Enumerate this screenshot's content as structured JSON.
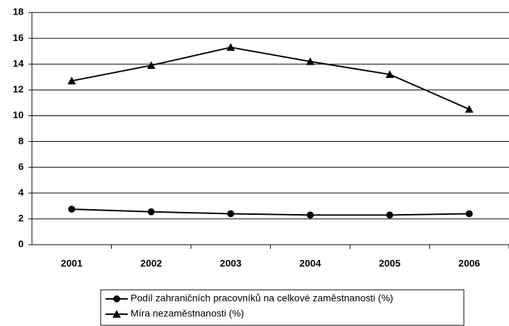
{
  "chart_data": {
    "type": "line",
    "categories": [
      "2001",
      "2002",
      "2003",
      "2004",
      "2005",
      "2006"
    ],
    "series": [
      {
        "name": "Podíl zahraničních pracovníků na celkové zaměstnanosti (%)",
        "color": "#000000",
        "marker": "circle",
        "values": [
          2.75,
          2.55,
          2.4,
          2.3,
          2.3,
          2.4
        ]
      },
      {
        "name": "Míra nezaměstnanosti (%)",
        "color": "#000000",
        "marker": "triangle",
        "values": [
          12.7,
          13.9,
          15.3,
          14.2,
          13.2,
          10.5
        ]
      }
    ],
    "ylim": [
      0,
      18
    ],
    "yticks": [
      0,
      2,
      4,
      6,
      8,
      10,
      12,
      14,
      16,
      18
    ],
    "grid": true,
    "legend": "bottom"
  }
}
